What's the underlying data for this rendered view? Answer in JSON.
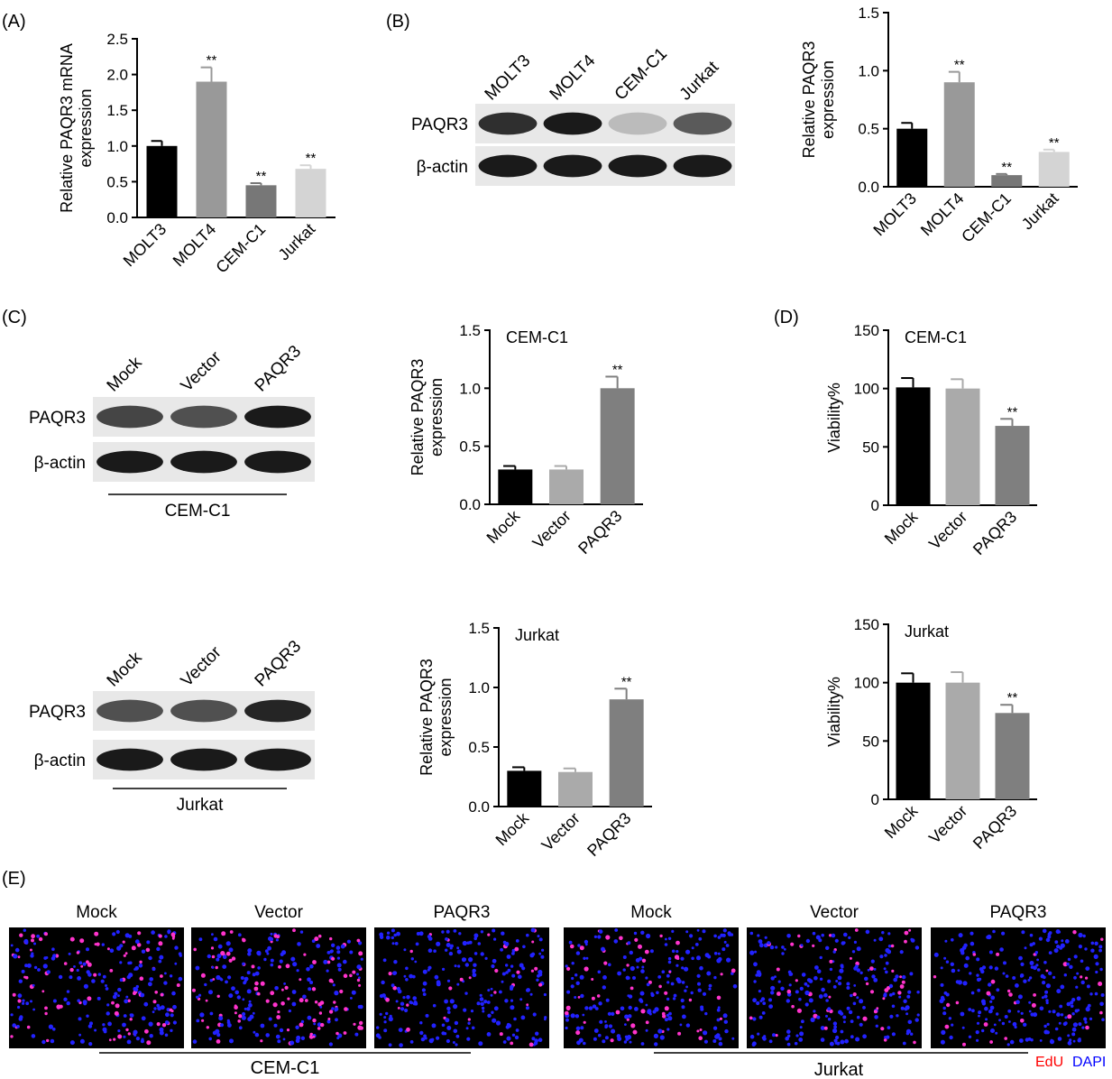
{
  "panels": {
    "A": {
      "letter": "(A)",
      "chart_data": {
        "type": "bar",
        "categories": [
          "MOLT3",
          "MOLT4",
          "CEM-C1",
          "Jurkat"
        ],
        "values": [
          1.0,
          1.9,
          0.45,
          0.68
        ],
        "errors": [
          0.07,
          0.2,
          0.03,
          0.05
        ],
        "significance": [
          "",
          "**",
          "**",
          "**"
        ],
        "colors": [
          "#000000",
          "#999999",
          "#777777",
          "#d4d4d4"
        ],
        "ylabel_line1": "Relative PAQR3 mRNA",
        "ylabel_line2": "expression",
        "ylim": [
          0,
          2.5
        ],
        "yticks": [
          "0.0",
          "0.5",
          "1.0",
          "1.5",
          "2.0",
          "2.5"
        ]
      }
    },
    "B": {
      "letter": "(B)",
      "blot": {
        "lanes": [
          "MOLT3",
          "MOLT4",
          "CEM-C1",
          "Jurkat"
        ],
        "rows": [
          {
            "label": "PAQR3",
            "intensity": [
              0.85,
              0.95,
              0.2,
              0.65
            ]
          },
          {
            "label": "β-actin",
            "intensity": [
              0.95,
              0.95,
              0.95,
              0.95
            ]
          }
        ]
      },
      "chart_data": {
        "type": "bar",
        "categories": [
          "MOLT3",
          "MOLT4",
          "CEM-C1",
          "Jurkat"
        ],
        "values": [
          0.5,
          0.9,
          0.1,
          0.3
        ],
        "errors": [
          0.05,
          0.09,
          0.01,
          0.02
        ],
        "significance": [
          "",
          "**",
          "**",
          "**"
        ],
        "colors": [
          "#000000",
          "#999999",
          "#777777",
          "#d4d4d4"
        ],
        "ylabel_line1": "Relative PAQR3",
        "ylabel_line2": "expression",
        "ylim": [
          0,
          1.5
        ],
        "yticks": [
          "0.0",
          "0.5",
          "1.0",
          "1.5"
        ]
      }
    },
    "C": {
      "letter": "(C)",
      "blots": [
        {
          "cell_line": "CEM-C1",
          "lanes": [
            "Mock",
            "Vector",
            "PAQR3"
          ],
          "rows": [
            {
              "label": "PAQR3",
              "intensity": [
                0.75,
                0.7,
                0.95
              ]
            },
            {
              "label": "β-actin",
              "intensity": [
                0.95,
                0.95,
                0.95
              ]
            }
          ]
        },
        {
          "cell_line": "Jurkat",
          "lanes": [
            "Mock",
            "Vector",
            "PAQR3"
          ],
          "rows": [
            {
              "label": "PAQR3",
              "intensity": [
                0.7,
                0.7,
                0.9
              ]
            },
            {
              "label": "β-actin",
              "intensity": [
                0.95,
                0.95,
                0.95
              ]
            }
          ]
        }
      ],
      "chart_data": [
        {
          "type": "bar",
          "title": "CEM-C1",
          "categories": [
            "Mock",
            "Vector",
            "PAQR3"
          ],
          "values": [
            0.3,
            0.3,
            1.0
          ],
          "errors": [
            0.03,
            0.03,
            0.1
          ],
          "significance": [
            "",
            "",
            "**"
          ],
          "colors": [
            "#000000",
            "#aaaaaa",
            "#7f7f7f"
          ],
          "ylabel_line1": "Relative PAQR3",
          "ylabel_line2": "expression",
          "ylim": [
            0,
            1.5
          ],
          "yticks": [
            "0.0",
            "0.5",
            "1.0",
            "1.5"
          ]
        },
        {
          "type": "bar",
          "title": "Jurkat",
          "categories": [
            "Mock",
            "Vector",
            "PAQR3"
          ],
          "values": [
            0.3,
            0.29,
            0.9
          ],
          "errors": [
            0.03,
            0.03,
            0.09
          ],
          "significance": [
            "",
            "",
            "**"
          ],
          "colors": [
            "#000000",
            "#aaaaaa",
            "#7f7f7f"
          ],
          "ylabel_line1": "Relative PAQR3",
          "ylabel_line2": "expression",
          "ylim": [
            0,
            1.5
          ],
          "yticks": [
            "0.0",
            "0.5",
            "1.0",
            "1.5"
          ]
        }
      ]
    },
    "D": {
      "letter": "(D)",
      "chart_data": [
        {
          "type": "bar",
          "title": "CEM-C1",
          "categories": [
            "Mock",
            "Vector",
            "PAQR3"
          ],
          "values": [
            101,
            100,
            68
          ],
          "errors": [
            8,
            8,
            6
          ],
          "significance": [
            "",
            "",
            "**"
          ],
          "colors": [
            "#000000",
            "#aaaaaa",
            "#7f7f7f"
          ],
          "ylabel": "Viability%",
          "ylim": [
            0,
            150
          ],
          "yticks": [
            "0",
            "50",
            "100",
            "150"
          ]
        },
        {
          "type": "bar",
          "title": "Jurkat",
          "categories": [
            "Mock",
            "Vector",
            "PAQR3"
          ],
          "values": [
            100,
            100,
            74
          ],
          "errors": [
            8,
            9,
            7
          ],
          "significance": [
            "",
            "",
            "**"
          ],
          "colors": [
            "#000000",
            "#aaaaaa",
            "#7f7f7f"
          ],
          "ylabel": "Viability%",
          "ylim": [
            0,
            150
          ],
          "yticks": [
            "0",
            "50",
            "100",
            "150"
          ]
        }
      ]
    },
    "E": {
      "letter": "(E)",
      "image_titles": [
        "Mock",
        "Vector",
        "PAQR3",
        "Mock",
        "Vector",
        "PAQR3"
      ],
      "edu_density": [
        0.35,
        0.4,
        0.12,
        0.2,
        0.22,
        0.1
      ],
      "group_labels": [
        "CEM-C1",
        "Jurkat"
      ],
      "legend": {
        "edu": "EdU",
        "dapi": "DAPI",
        "edu_color": "#ff0000",
        "dapi_color": "#0000ff"
      },
      "cell_colors": {
        "edu": "#ff33cc",
        "dapi": "#2222ff",
        "background": "#000000"
      }
    }
  }
}
